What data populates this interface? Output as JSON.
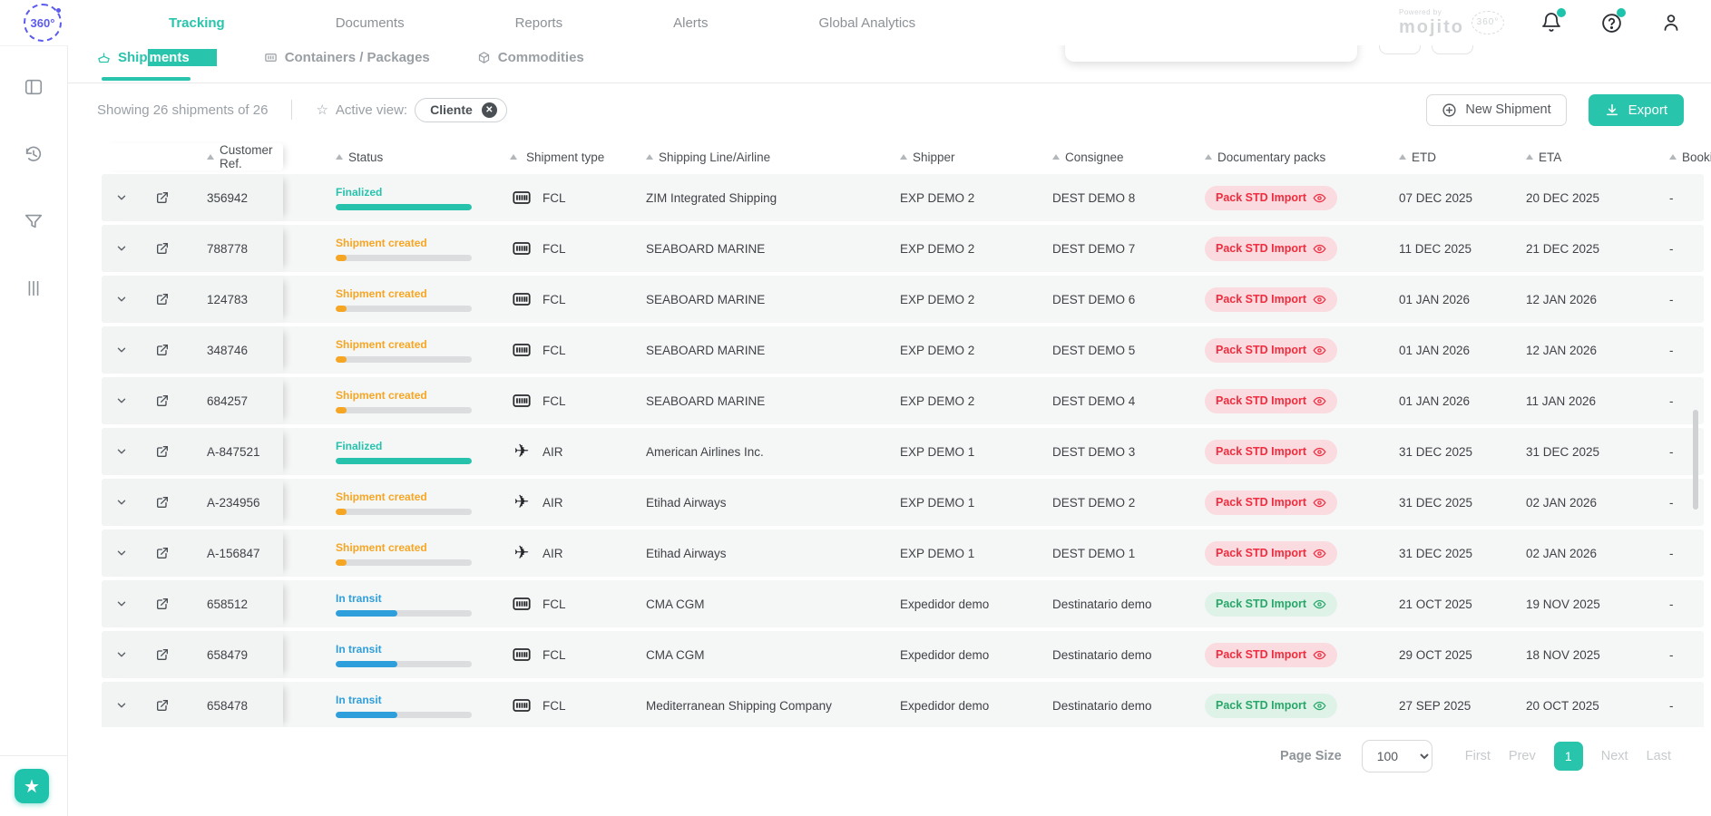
{
  "brand": {
    "logo_text": "360°",
    "powered_by": "Powered by",
    "powered_brand": "mojito",
    "powered_badge": "360°"
  },
  "nav": {
    "items": [
      {
        "label": "Tracking",
        "active": true
      },
      {
        "label": "Documents",
        "active": false
      },
      {
        "label": "Reports",
        "active": false
      },
      {
        "label": "Alerts",
        "active": false
      },
      {
        "label": "Global Analytics",
        "active": false
      }
    ]
  },
  "tabs": [
    {
      "label_start": "Ship",
      "label_highlight": "ments",
      "label": "Shipments",
      "active": true
    },
    {
      "label": "Containers / Packages",
      "active": false
    },
    {
      "label": "Commodities",
      "active": false
    }
  ],
  "toolbar": {
    "showing_text": "Showing 26 shipments of 26",
    "active_view_label": "Active view:",
    "active_view_chip": "Cliente",
    "new_shipment_label": "New Shipment",
    "export_label": "Export"
  },
  "table": {
    "columns": [
      "Customer Ref.",
      "Status",
      "Shipment type",
      "Shipping Line/Airline",
      "Shipper",
      "Consignee",
      "Documentary packs",
      "ETD",
      "ETA",
      "Booking"
    ],
    "rows": [
      {
        "ref": "356942",
        "status": {
          "label": "Finalized",
          "type": "finalized",
          "progress": 100
        },
        "mode": "FCL",
        "carrier": "ZIM Integrated Shipping",
        "shipper": "EXP DEMO 2",
        "consignee": "DEST DEMO 8",
        "pack": {
          "label": "Pack STD Import",
          "variant": "red"
        },
        "etd": "07 DEC 2025",
        "eta": "20 DEC 2025",
        "booking": "-"
      },
      {
        "ref": "788778",
        "status": {
          "label": "Shipment created",
          "type": "created",
          "progress": 8
        },
        "mode": "FCL",
        "carrier": "SEABOARD MARINE",
        "shipper": "EXP DEMO 2",
        "consignee": "DEST DEMO 7",
        "pack": {
          "label": "Pack STD Import",
          "variant": "red"
        },
        "etd": "11 DEC 2025",
        "eta": "21 DEC 2025",
        "booking": "-"
      },
      {
        "ref": "124783",
        "status": {
          "label": "Shipment created",
          "type": "created",
          "progress": 8
        },
        "mode": "FCL",
        "carrier": "SEABOARD MARINE",
        "shipper": "EXP DEMO 2",
        "consignee": "DEST DEMO 6",
        "pack": {
          "label": "Pack STD Import",
          "variant": "red"
        },
        "etd": "01 JAN 2026",
        "eta": "12 JAN 2026",
        "booking": "-"
      },
      {
        "ref": "348746",
        "status": {
          "label": "Shipment created",
          "type": "created",
          "progress": 8
        },
        "mode": "FCL",
        "carrier": "SEABOARD MARINE",
        "shipper": "EXP DEMO 2",
        "consignee": "DEST DEMO 5",
        "pack": {
          "label": "Pack STD Import",
          "variant": "red"
        },
        "etd": "01 JAN 2026",
        "eta": "12 JAN 2026",
        "booking": "-"
      },
      {
        "ref": "684257",
        "status": {
          "label": "Shipment created",
          "type": "created",
          "progress": 8
        },
        "mode": "FCL",
        "carrier": "SEABOARD MARINE",
        "shipper": "EXP DEMO 2",
        "consignee": "DEST DEMO 4",
        "pack": {
          "label": "Pack STD Import",
          "variant": "red"
        },
        "etd": "01 JAN 2026",
        "eta": "11 JAN 2026",
        "booking": "-"
      },
      {
        "ref": "A-847521",
        "status": {
          "label": "Finalized",
          "type": "finalized",
          "progress": 100
        },
        "mode": "AIR",
        "carrier": "American Airlines Inc.",
        "shipper": "EXP DEMO 1",
        "consignee": "DEST DEMO 3",
        "pack": {
          "label": "Pack STD Import",
          "variant": "red"
        },
        "etd": "31 DEC 2025",
        "eta": "31 DEC 2025",
        "booking": "-"
      },
      {
        "ref": "A-234956",
        "status": {
          "label": "Shipment created",
          "type": "created",
          "progress": 8
        },
        "mode": "AIR",
        "carrier": "Etihad Airways",
        "shipper": "EXP DEMO 1",
        "consignee": "DEST DEMO 2",
        "pack": {
          "label": "Pack STD Import",
          "variant": "red"
        },
        "etd": "31 DEC 2025",
        "eta": "02 JAN 2026",
        "booking": "-"
      },
      {
        "ref": "A-156847",
        "status": {
          "label": "Shipment created",
          "type": "created",
          "progress": 8
        },
        "mode": "AIR",
        "carrier": "Etihad Airways",
        "shipper": "EXP DEMO 1",
        "consignee": "DEST DEMO 1",
        "pack": {
          "label": "Pack STD Import",
          "variant": "red"
        },
        "etd": "31 DEC 2025",
        "eta": "02 JAN 2026",
        "booking": "-"
      },
      {
        "ref": "658512",
        "status": {
          "label": "In transit",
          "type": "transit",
          "progress": 45
        },
        "mode": "FCL",
        "carrier": "CMA CGM",
        "shipper": "Expedidor demo",
        "consignee": "Destinatario demo",
        "pack": {
          "label": "Pack STD Import",
          "variant": "green"
        },
        "etd": "21 OCT 2025",
        "eta": "19 NOV 2025",
        "booking": "-"
      },
      {
        "ref": "658479",
        "status": {
          "label": "In transit",
          "type": "transit",
          "progress": 45
        },
        "mode": "FCL",
        "carrier": "CMA CGM",
        "shipper": "Expedidor demo",
        "consignee": "Destinatario demo",
        "pack": {
          "label": "Pack STD Import",
          "variant": "red"
        },
        "etd": "29 OCT 2025",
        "eta": "18 NOV 2025",
        "booking": "-"
      },
      {
        "ref": "658478",
        "status": {
          "label": "In transit",
          "type": "transit",
          "progress": 45
        },
        "mode": "FCL",
        "carrier": "Mediterranean Shipping Company",
        "shipper": "Expedidor demo",
        "consignee": "Destinatario demo",
        "pack": {
          "label": "Pack STD Import",
          "variant": "green"
        },
        "etd": "27 SEP 2025",
        "eta": "20 OCT 2025",
        "booking": "-"
      }
    ]
  },
  "pagination": {
    "page_size_label": "Page Size",
    "page_size_value": "100",
    "first": "First",
    "prev": "Prev",
    "current_page": "1",
    "next": "Next",
    "last": "Last"
  },
  "icons": {
    "sidebar": [
      "board-icon",
      "history-icon",
      "filter-icon",
      "columns-icon"
    ],
    "topnav": [
      "bell-icon",
      "help-icon",
      "user-icon"
    ]
  },
  "colors": {
    "accent": "#29c4ac",
    "logo_purple": "#5b5bf0",
    "status": {
      "finalized": "#26c2ac",
      "created": "#f6a623",
      "transit": "#2e9fdb"
    },
    "bar_track": "#dcddde",
    "pack": {
      "red": {
        "text": "#ef2d3f",
        "bg": "#fadbe0"
      },
      "green": {
        "text": "#28a76a",
        "bg": "#dff2e7"
      }
    }
  }
}
